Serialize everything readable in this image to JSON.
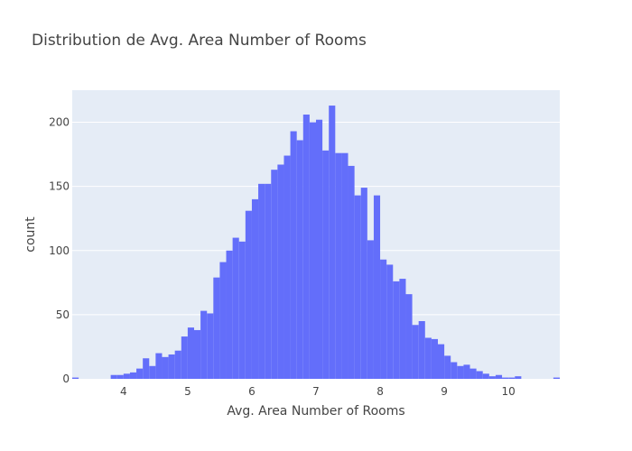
{
  "chart_data": {
    "type": "bar",
    "title": "Distribution de Avg. Area Number of Rooms",
    "xlabel": "Avg. Area Number of Rooms",
    "ylabel": "count",
    "xlim": [
      3.2,
      10.8
    ],
    "ylim": [
      0,
      225
    ],
    "grid": true,
    "bar_color": "#636efa",
    "plot_bg": "#e5ecf6",
    "bin_width": 0.1,
    "x_ticks": [
      {
        "value": 4,
        "label": "4"
      },
      {
        "value": 5,
        "label": "5"
      },
      {
        "value": 6,
        "label": "6"
      },
      {
        "value": 7,
        "label": "7"
      },
      {
        "value": 8,
        "label": "8"
      },
      {
        "value": 9,
        "label": "9"
      },
      {
        "value": 10,
        "label": "10"
      }
    ],
    "y_ticks": [
      {
        "value": 0,
        "label": "0"
      },
      {
        "value": 50,
        "label": "50"
      },
      {
        "value": 100,
        "label": "100"
      },
      {
        "value": 150,
        "label": "150"
      },
      {
        "value": 200,
        "label": "200"
      }
    ],
    "bins": [
      {
        "x0": 3.2,
        "count": 1
      },
      {
        "x0": 3.8,
        "count": 3
      },
      {
        "x0": 3.9,
        "count": 3
      },
      {
        "x0": 4.0,
        "count": 4
      },
      {
        "x0": 4.1,
        "count": 5
      },
      {
        "x0": 4.2,
        "count": 8
      },
      {
        "x0": 4.3,
        "count": 16
      },
      {
        "x0": 4.4,
        "count": 10
      },
      {
        "x0": 4.5,
        "count": 20
      },
      {
        "x0": 4.6,
        "count": 17
      },
      {
        "x0": 4.7,
        "count": 19
      },
      {
        "x0": 4.8,
        "count": 22
      },
      {
        "x0": 4.9,
        "count": 33
      },
      {
        "x0": 5.0,
        "count": 40
      },
      {
        "x0": 5.1,
        "count": 38
      },
      {
        "x0": 5.2,
        "count": 53
      },
      {
        "x0": 5.3,
        "count": 51
      },
      {
        "x0": 5.4,
        "count": 79
      },
      {
        "x0": 5.5,
        "count": 91
      },
      {
        "x0": 5.6,
        "count": 100
      },
      {
        "x0": 5.7,
        "count": 110
      },
      {
        "x0": 5.8,
        "count": 107
      },
      {
        "x0": 5.9,
        "count": 131
      },
      {
        "x0": 6.0,
        "count": 140
      },
      {
        "x0": 6.1,
        "count": 152
      },
      {
        "x0": 6.2,
        "count": 152
      },
      {
        "x0": 6.3,
        "count": 163
      },
      {
        "x0": 6.4,
        "count": 167
      },
      {
        "x0": 6.5,
        "count": 174
      },
      {
        "x0": 6.6,
        "count": 193
      },
      {
        "x0": 6.7,
        "count": 186
      },
      {
        "x0": 6.8,
        "count": 206
      },
      {
        "x0": 6.9,
        "count": 200
      },
      {
        "x0": 7.0,
        "count": 202
      },
      {
        "x0": 7.1,
        "count": 178
      },
      {
        "x0": 7.2,
        "count": 213
      },
      {
        "x0": 7.3,
        "count": 176
      },
      {
        "x0": 7.4,
        "count": 176
      },
      {
        "x0": 7.5,
        "count": 166
      },
      {
        "x0": 7.6,
        "count": 143
      },
      {
        "x0": 7.7,
        "count": 149
      },
      {
        "x0": 7.8,
        "count": 108
      },
      {
        "x0": 7.9,
        "count": 143
      },
      {
        "x0": 8.0,
        "count": 93
      },
      {
        "x0": 8.1,
        "count": 89
      },
      {
        "x0": 8.2,
        "count": 76
      },
      {
        "x0": 8.3,
        "count": 78
      },
      {
        "x0": 8.4,
        "count": 66
      },
      {
        "x0": 8.5,
        "count": 42
      },
      {
        "x0": 8.6,
        "count": 45
      },
      {
        "x0": 8.7,
        "count": 32
      },
      {
        "x0": 8.8,
        "count": 31
      },
      {
        "x0": 8.9,
        "count": 27
      },
      {
        "x0": 9.0,
        "count": 18
      },
      {
        "x0": 9.1,
        "count": 13
      },
      {
        "x0": 9.2,
        "count": 10
      },
      {
        "x0": 9.3,
        "count": 11
      },
      {
        "x0": 9.4,
        "count": 8
      },
      {
        "x0": 9.5,
        "count": 6
      },
      {
        "x0": 9.6,
        "count": 4
      },
      {
        "x0": 9.7,
        "count": 2
      },
      {
        "x0": 9.8,
        "count": 3
      },
      {
        "x0": 9.9,
        "count": 1
      },
      {
        "x0": 10.0,
        "count": 1
      },
      {
        "x0": 10.1,
        "count": 2
      },
      {
        "x0": 10.7,
        "count": 1
      }
    ]
  }
}
